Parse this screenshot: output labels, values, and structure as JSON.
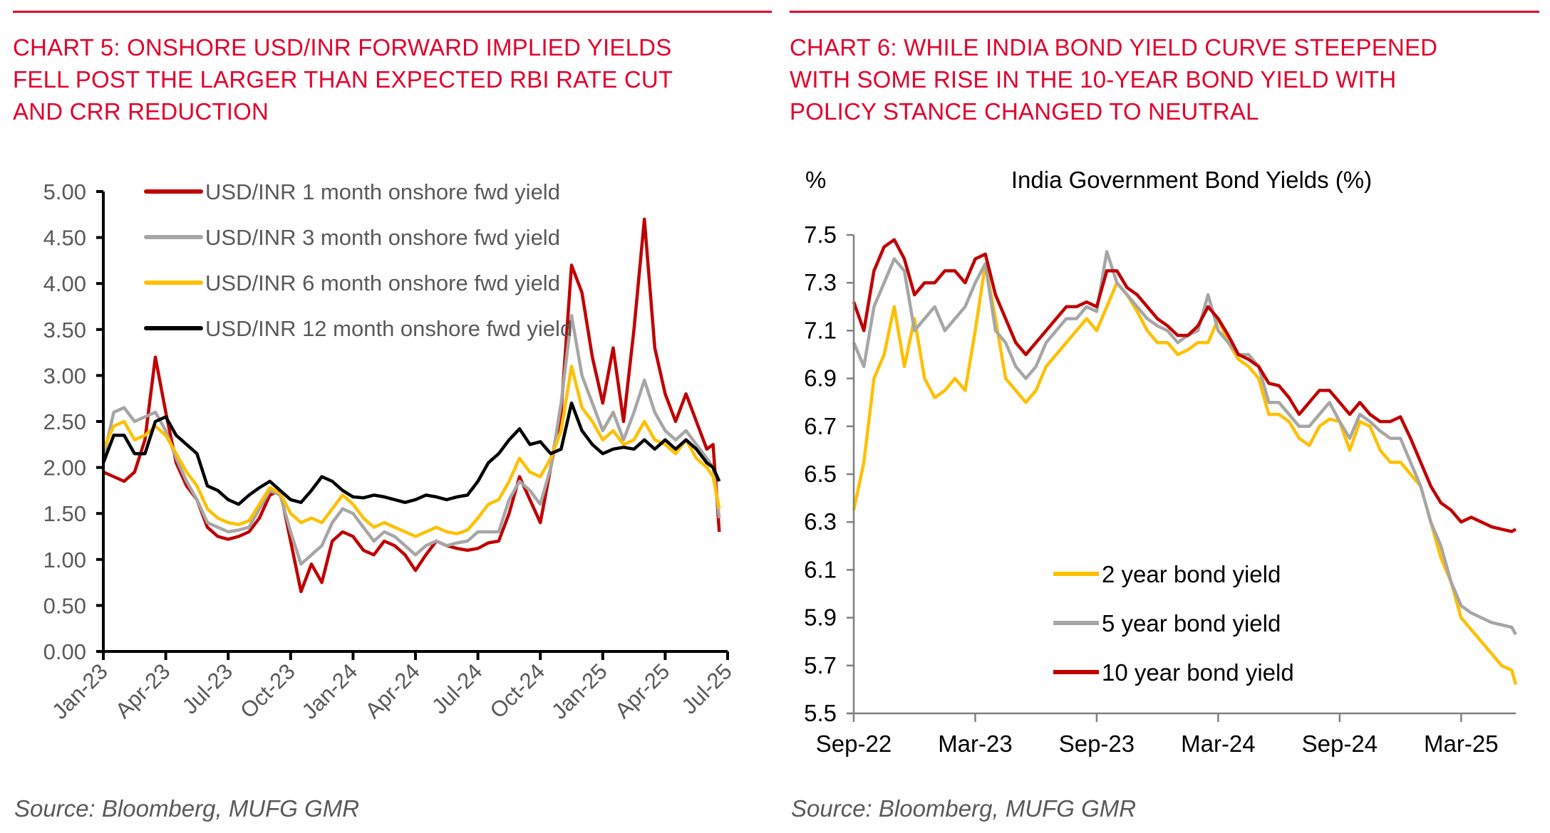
{
  "panels": [
    {
      "title": "CHART 5: ONSHORE USD/INR FORWARD IMPLIED YIELDS FELL POST THE LARGER THAN EXPECTED RBI RATE CUT AND CRR REDUCTION",
      "title_lines": [
        "CHART 5: ONSHORE USD/INR FORWARD IMPLIED YIELDS",
        "FELL POST THE LARGER THAN EXPECTED RBI RATE CUT",
        "AND CRR REDUCTION"
      ],
      "source": "Source: Bloomberg, MUFG GMR"
    },
    {
      "title": "CHART 6: WHILE INDIA BOND YIELD CURVE STEEPENED WITH SOME RISE IN THE 10-YEAR BOND YIELD WITH POLICY STANCE CHANGED TO NEUTRAL",
      "title_lines": [
        "CHART 6: WHILE INDIA BOND YIELD CURVE STEEPENED",
        "WITH SOME RISE IN THE 10-YEAR BOND YIELD WITH",
        "POLICY STANCE CHANGED TO NEUTRAL"
      ],
      "source": "Source: Bloomberg, MUFG GMR"
    }
  ],
  "colors": {
    "title_red": "#e4002b",
    "source_gray": "#595959"
  },
  "chart_data": [
    {
      "type": "line",
      "title": "",
      "xlabel": "",
      "ylabel": "",
      "ylim": [
        0,
        5
      ],
      "yticks": [
        "0.00",
        "0.50",
        "1.00",
        "1.50",
        "2.00",
        "2.50",
        "3.00",
        "3.50",
        "4.00",
        "4.50",
        "5.00"
      ],
      "ytick_values": [
        0,
        0.5,
        1,
        1.5,
        2,
        2.5,
        3,
        3.5,
        4,
        4.5,
        5
      ],
      "xticks": [
        "Jan-23",
        "Apr-23",
        "Jul-23",
        "Oct-23",
        "Jan-24",
        "Apr-24",
        "Jul-24",
        "Oct-24",
        "Jan-25",
        "Apr-25",
        "Jul-25"
      ],
      "xlim_months": [
        0,
        30
      ],
      "grid": false,
      "legend_position": "top-left",
      "x_months": [
        0,
        0.5,
        1,
        1.5,
        2,
        2.5,
        3,
        3.5,
        4,
        4.5,
        5,
        5.5,
        6,
        6.5,
        7,
        7.5,
        8,
        8.5,
        9,
        9.5,
        10,
        10.5,
        11,
        11.5,
        12,
        12.5,
        13,
        13.5,
        14,
        14.5,
        15,
        15.5,
        16,
        16.5,
        17,
        17.5,
        18,
        18.5,
        19,
        19.5,
        20,
        20.5,
        21,
        21.5,
        22,
        22.5,
        23,
        23.5,
        24,
        24.5,
        25,
        25.5,
        26,
        26.5,
        27,
        27.5,
        28,
        28.5,
        29,
        29.3,
        29.6
      ],
      "series": [
        {
          "name": "USD/INR 1 month onshore fwd yield",
          "color": "#c00000",
          "values": [
            1.95,
            1.9,
            1.85,
            1.95,
            2.3,
            3.2,
            2.6,
            2.05,
            1.8,
            1.65,
            1.35,
            1.25,
            1.22,
            1.25,
            1.3,
            1.45,
            1.7,
            1.75,
            1.2,
            0.65,
            0.95,
            0.75,
            1.2,
            1.3,
            1.25,
            1.1,
            1.05,
            1.2,
            1.15,
            1.05,
            0.88,
            1.05,
            1.2,
            1.15,
            1.12,
            1.1,
            1.12,
            1.18,
            1.2,
            1.5,
            1.9,
            1.65,
            1.4,
            2.0,
            2.6,
            4.2,
            3.9,
            3.2,
            2.7,
            3.3,
            2.5,
            3.5,
            4.7,
            3.3,
            2.8,
            2.5,
            2.8,
            2.5,
            2.2,
            2.25,
            1.3
          ]
        },
        {
          "name": "USD/INR 3 month onshore fwd yield",
          "color": "#a6a6a6",
          "values": [
            2.1,
            2.6,
            2.65,
            2.5,
            2.55,
            2.6,
            2.4,
            2.1,
            1.85,
            1.65,
            1.4,
            1.35,
            1.3,
            1.32,
            1.35,
            1.55,
            1.75,
            1.7,
            1.3,
            0.95,
            1.05,
            1.15,
            1.4,
            1.55,
            1.5,
            1.35,
            1.2,
            1.3,
            1.25,
            1.15,
            1.05,
            1.15,
            1.2,
            1.15,
            1.18,
            1.2,
            1.3,
            1.3,
            1.3,
            1.65,
            1.85,
            1.75,
            1.6,
            2.0,
            2.7,
            3.65,
            3.0,
            2.7,
            2.4,
            2.6,
            2.3,
            2.6,
            2.95,
            2.6,
            2.4,
            2.3,
            2.4,
            2.25,
            2.1,
            2.0,
            1.45
          ]
        },
        {
          "name": "USD/INR 6 month onshore fwd yield",
          "color": "#ffc000",
          "values": [
            2.2,
            2.45,
            2.5,
            2.3,
            2.35,
            2.45,
            2.35,
            2.15,
            1.95,
            1.8,
            1.55,
            1.45,
            1.4,
            1.38,
            1.42,
            1.6,
            1.78,
            1.72,
            1.5,
            1.4,
            1.45,
            1.4,
            1.55,
            1.7,
            1.6,
            1.45,
            1.35,
            1.4,
            1.35,
            1.3,
            1.25,
            1.3,
            1.35,
            1.3,
            1.28,
            1.32,
            1.45,
            1.6,
            1.65,
            1.85,
            2.1,
            1.95,
            1.9,
            2.1,
            2.4,
            3.1,
            2.65,
            2.5,
            2.3,
            2.4,
            2.25,
            2.3,
            2.5,
            2.3,
            2.25,
            2.15,
            2.3,
            2.1,
            2.0,
            1.9,
            1.55
          ]
        },
        {
          "name": "USD/INR 12 month onshore fwd yield",
          "color": "#000000",
          "values": [
            2.05,
            2.35,
            2.35,
            2.15,
            2.15,
            2.5,
            2.55,
            2.35,
            2.25,
            2.15,
            1.8,
            1.75,
            1.65,
            1.6,
            1.7,
            1.78,
            1.85,
            1.75,
            1.65,
            1.62,
            1.75,
            1.9,
            1.85,
            1.75,
            1.68,
            1.67,
            1.7,
            1.68,
            1.65,
            1.62,
            1.65,
            1.7,
            1.68,
            1.65,
            1.68,
            1.7,
            1.85,
            2.05,
            2.15,
            2.3,
            2.42,
            2.25,
            2.28,
            2.15,
            2.2,
            2.7,
            2.4,
            2.25,
            2.15,
            2.2,
            2.22,
            2.2,
            2.3,
            2.2,
            2.3,
            2.2,
            2.3,
            2.2,
            2.05,
            2.0,
            1.85
          ]
        }
      ]
    },
    {
      "type": "line",
      "title": "India Government Bond Yields (%)",
      "xlabel": "",
      "ylabel": "%",
      "ylim": [
        5.5,
        7.5
      ],
      "yticks": [
        "5.5",
        "5.7",
        "5.9",
        "6.1",
        "6.3",
        "6.5",
        "6.7",
        "6.9",
        "7.1",
        "7.3",
        "7.5"
      ],
      "ytick_values": [
        5.5,
        5.7,
        5.9,
        6.1,
        6.3,
        6.5,
        6.7,
        6.9,
        7.1,
        7.3,
        7.5
      ],
      "xticks": [
        "Sep-22",
        "Mar-23",
        "Sep-23",
        "Mar-24",
        "Sep-24",
        "Mar-25"
      ],
      "xlim_months": [
        0,
        32.7
      ],
      "grid": false,
      "legend_position": "bottom-center",
      "x_months": [
        0,
        0.5,
        1,
        1.5,
        2,
        2.5,
        3,
        3.5,
        4,
        4.5,
        5,
        5.5,
        6,
        6.5,
        7,
        7.5,
        8,
        8.5,
        9,
        9.5,
        10,
        10.5,
        11,
        11.5,
        12,
        12.5,
        13,
        13.5,
        14,
        14.5,
        15,
        15.5,
        16,
        16.5,
        17,
        17.5,
        18,
        18.5,
        19,
        19.5,
        20,
        20.5,
        21,
        21.5,
        22,
        22.5,
        23,
        23.5,
        24,
        24.5,
        25,
        25.5,
        26,
        26.5,
        27,
        27.5,
        28,
        28.5,
        29,
        29.5,
        30,
        30.5,
        31,
        31.5,
        32,
        32.5,
        32.7
      ],
      "series": [
        {
          "name": "2 year  bond yield",
          "color": "#ffc000",
          "values": [
            6.35,
            6.55,
            6.9,
            7.0,
            7.2,
            6.95,
            7.15,
            6.9,
            6.82,
            6.85,
            6.9,
            6.85,
            7.1,
            7.38,
            7.15,
            6.9,
            6.85,
            6.8,
            6.85,
            6.95,
            7.0,
            7.05,
            7.1,
            7.15,
            7.1,
            7.2,
            7.3,
            7.25,
            7.18,
            7.1,
            7.05,
            7.05,
            7.0,
            7.02,
            7.05,
            7.05,
            7.15,
            7.05,
            6.98,
            6.95,
            6.9,
            6.75,
            6.75,
            6.72,
            6.65,
            6.62,
            6.7,
            6.73,
            6.72,
            6.6,
            6.72,
            6.7,
            6.6,
            6.55,
            6.55,
            6.5,
            6.45,
            6.3,
            6.15,
            6.05,
            5.9,
            5.85,
            5.8,
            5.75,
            5.7,
            5.68,
            5.62
          ]
        },
        {
          "name": "5 year  bond yield",
          "color": "#a6a6a6",
          "values": [
            7.05,
            6.95,
            7.2,
            7.3,
            7.4,
            7.35,
            7.1,
            7.15,
            7.2,
            7.1,
            7.15,
            7.2,
            7.3,
            7.38,
            7.1,
            7.05,
            6.95,
            6.9,
            6.95,
            7.05,
            7.1,
            7.15,
            7.15,
            7.2,
            7.18,
            7.43,
            7.3,
            7.25,
            7.2,
            7.15,
            7.12,
            7.1,
            7.05,
            7.08,
            7.1,
            7.25,
            7.1,
            7.05,
            7.0,
            7.0,
            6.95,
            6.8,
            6.8,
            6.75,
            6.7,
            6.7,
            6.75,
            6.8,
            6.72,
            6.65,
            6.75,
            6.72,
            6.68,
            6.65,
            6.65,
            6.55,
            6.45,
            6.3,
            6.2,
            6.05,
            5.95,
            5.92,
            5.9,
            5.88,
            5.87,
            5.86,
            5.83
          ]
        },
        {
          "name": "10 year  bond yield",
          "color": "#c00000",
          "values": [
            7.22,
            7.1,
            7.35,
            7.45,
            7.48,
            7.4,
            7.25,
            7.3,
            7.3,
            7.35,
            7.35,
            7.3,
            7.4,
            7.42,
            7.25,
            7.15,
            7.05,
            7.0,
            7.05,
            7.1,
            7.15,
            7.2,
            7.2,
            7.22,
            7.2,
            7.35,
            7.35,
            7.28,
            7.25,
            7.2,
            7.15,
            7.12,
            7.08,
            7.08,
            7.12,
            7.2,
            7.15,
            7.08,
            7.0,
            6.98,
            6.95,
            6.88,
            6.87,
            6.82,
            6.75,
            6.8,
            6.85,
            6.85,
            6.8,
            6.75,
            6.8,
            6.75,
            6.72,
            6.72,
            6.74,
            6.65,
            6.55,
            6.45,
            6.38,
            6.35,
            6.3,
            6.32,
            6.3,
            6.28,
            6.27,
            6.26,
            6.27
          ]
        }
      ]
    }
  ]
}
